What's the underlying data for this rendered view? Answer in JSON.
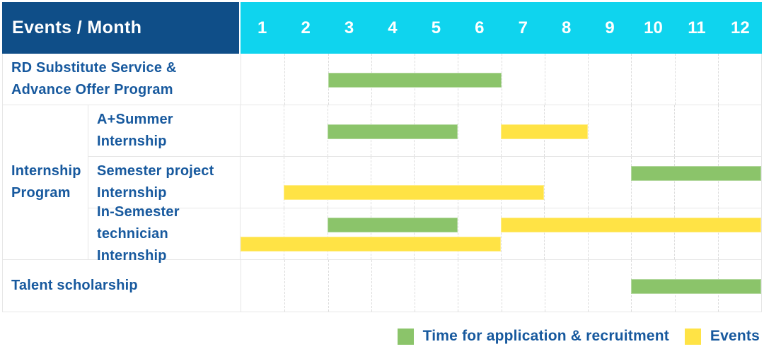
{
  "header": {
    "label": "Events / Month",
    "months": [
      "1",
      "2",
      "3",
      "4",
      "5",
      "6",
      "7",
      "8",
      "9",
      "10",
      "11",
      "12"
    ]
  },
  "legend": {
    "items": [
      {
        "key": "recruitment",
        "label": "Time for application & recruitment",
        "color": "#8BC46A"
      },
      {
        "key": "event",
        "label": "Events",
        "color": "#FFE345"
      }
    ]
  },
  "colors": {
    "header_navy": "#0F4E88",
    "header_cyan": "#0FD4EE",
    "label_blue": "#17599E",
    "bar_green": "#8BC46A",
    "bar_yellow": "#FFE345",
    "grid_line": "#E6E6E6",
    "grid_dash": "#DCDCDC"
  },
  "chart_data": {
    "type": "gantt",
    "x_axis": {
      "label": "Month",
      "categories": [
        1,
        2,
        3,
        4,
        5,
        6,
        7,
        8,
        9,
        10,
        11,
        12
      ],
      "range": [
        1,
        12
      ]
    },
    "bar_types": {
      "recruitment": {
        "legend": "Time for application & recruitment",
        "color": "#8BC46A"
      },
      "event": {
        "legend": "Events",
        "color": "#FFE345"
      }
    },
    "group_label": "Internship Program",
    "group_label_lines": [
      "Internship",
      "Program"
    ],
    "rows": [
      {
        "id": "rd-substitute",
        "label": "RD Substitute Service & Advance Offer Program",
        "label_lines": [
          "RD Substitute Service &",
          "Advance Offer Program"
        ],
        "group": null,
        "bars": [
          {
            "type": "recruitment",
            "month_start": 3,
            "month_end": 6,
            "lane": "center"
          }
        ]
      },
      {
        "id": "a-plus-summer",
        "label": "A+Summer Internship",
        "label_lines": [
          "A+Summer",
          "Internship"
        ],
        "group": "Internship Program",
        "bars": [
          {
            "type": "recruitment",
            "month_start": 3,
            "month_end": 5,
            "lane": "center"
          },
          {
            "type": "event",
            "month_start": 7,
            "month_end": 8,
            "lane": "center"
          }
        ]
      },
      {
        "id": "semester-project",
        "label": "Semester project Internship",
        "label_lines": [
          "Semester project",
          "Internship"
        ],
        "group": "Internship Program",
        "bars": [
          {
            "type": "recruitment",
            "month_start": 10,
            "month_end": 12,
            "lane": "top"
          },
          {
            "type": "event",
            "month_start": 2,
            "month_end": 7,
            "lane": "bottom"
          }
        ]
      },
      {
        "id": "in-semester-technician",
        "label": "In-Semester technician Internship",
        "label_lines": [
          "In-Semester",
          "technician Internship"
        ],
        "group": "Internship Program",
        "bars": [
          {
            "type": "recruitment",
            "month_start": 3,
            "month_end": 5,
            "lane": "top"
          },
          {
            "type": "event",
            "month_start": 7,
            "month_end": 12,
            "lane": "top"
          },
          {
            "type": "event",
            "month_start": 1,
            "month_end": 6,
            "lane": "bottom"
          }
        ]
      },
      {
        "id": "talent-scholarship",
        "label": "Talent scholarship",
        "label_lines": [
          "Talent scholarship"
        ],
        "group": null,
        "bars": [
          {
            "type": "recruitment",
            "month_start": 10,
            "month_end": 12,
            "lane": "center"
          }
        ]
      }
    ]
  }
}
